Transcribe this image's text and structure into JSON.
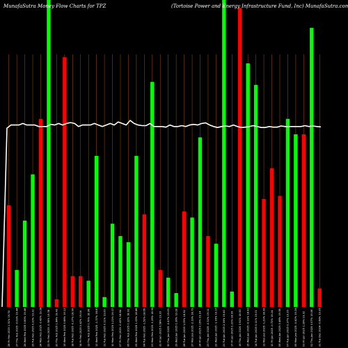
{
  "header": {
    "left_title": "MunafaSutra  Money  Flow  Charts for TPZ",
    "right_title": "(Tortoise   Power and Energy Infrastructure   Fund,  Inc) MunafaSutra.com"
  },
  "colors": {
    "background": "#000000",
    "up": "#00ff00",
    "down": "#ff0000",
    "line": "#ffffff",
    "grid": "#8b4500"
  },
  "chart_data": {
    "type": "bar",
    "ylim": [
      0,
      100
    ],
    "grid": "vertical",
    "bars": [
      {
        "label": "28 Fri Feb 2025 1.31% 19.74",
        "value": 33,
        "direction": "down"
      },
      {
        "label": "27 Thu Feb 2025 -0.09% 19.44",
        "value": 12,
        "direction": "up"
      },
      {
        "label": "26 Wed Feb 2025 0.83% 19.48",
        "value": 28,
        "direction": "up"
      },
      {
        "label": "25 Tue Feb 2025 0.20% 19.32",
        "value": 43,
        "direction": "up"
      },
      {
        "label": "24 Mon Feb 2025 -0.42% 19.28",
        "value": 61,
        "direction": "down"
      },
      {
        "label": "21 Fri Feb 2025 -0.36% 19.36",
        "value": 100,
        "direction": "up"
      },
      {
        "label": "20 Thu Feb 2025 1.64% 19.43",
        "value": 2.5,
        "direction": "down"
      },
      {
        "label": "19 Wed Feb 2025 0.66% 19.12",
        "value": 81,
        "direction": "down"
      },
      {
        "label": "18 Tue Feb 2025 -0.27% 18.99",
        "value": 10,
        "direction": "down"
      },
      {
        "label": "14 Fri Feb 2025 0.42% 19.04",
        "value": 10,
        "direction": "down"
      },
      {
        "label": "13 Thu Feb 2025 0.70% 18.96",
        "value": 8.5,
        "direction": "up"
      },
      {
        "label": "12 Wed Feb 2025 -1.37% 18.83",
        "value": 49,
        "direction": "up"
      },
      {
        "label": "11 Tue Feb 2025 0.11% 19.09",
        "value": 3.2,
        "direction": "up"
      },
      {
        "label": "10 Mon Feb 2025 1.21% 19.07",
        "value": 27,
        "direction": "up"
      },
      {
        "label": "07 Fri Feb 2025 -0.43% 18.84",
        "value": 23,
        "direction": "up"
      },
      {
        "label": "06 Thu Feb 2025 0.32% 18.92",
        "value": 21,
        "direction": "up"
      },
      {
        "label": "05 Wed Feb 2025 1.09% 18.86",
        "value": 49,
        "direction": "up"
      },
      {
        "label": "04 Tue Feb 2025 -1.52% 18.66",
        "value": 30,
        "direction": "down"
      },
      {
        "label": "03 Mon Feb 2025 -1.29% 18.95",
        "value": 73,
        "direction": "up"
      },
      {
        "label": "31 Fri Jan 2025 0.58% 19.20",
        "value": 12,
        "direction": "down"
      },
      {
        "label": "30 Thu Jan 2025 -0.47% 19.09",
        "value": 9.5,
        "direction": "up"
      },
      {
        "label": "29 Wed Jan 2025 1.36% 19.18",
        "value": 4.5,
        "direction": "up"
      },
      {
        "label": "28 Tue Jan 2025 1.05% 18.92",
        "value": 31,
        "direction": "down"
      },
      {
        "label": "27 Mon Jan 2025 -2.19% 18.72",
        "value": 29,
        "direction": "up"
      },
      {
        "label": "24 Fri Jan 2025 0.16% 19.14",
        "value": 55,
        "direction": "up"
      },
      {
        "label": "23 Thu Jan 2025 -0.32% 19.11",
        "value": 23,
        "direction": "down"
      },
      {
        "label": "22 Wed Jan 2025 -1.16% 19.17",
        "value": 20.5,
        "direction": "up"
      },
      {
        "label": "21 Tue Jan 2025 2.16% 19.40",
        "value": 100,
        "direction": "up"
      },
      {
        "label": "17 Fri Jan 2025 0.31% 18.99",
        "value": 5,
        "direction": "up"
      },
      {
        "label": "16 Thu Jan 2025 0.51% 18.93",
        "value": 97,
        "direction": "down"
      },
      {
        "label": "15 Wed Jan 2025 -0.93% 18.83",
        "value": 79,
        "direction": "up"
      },
      {
        "label": "14 Tue Jan 2025 0.11% 19.01",
        "value": 72,
        "direction": "up"
      },
      {
        "label": "13 Mon Jan 2025 -1.29% 18.99",
        "value": 35,
        "direction": "down"
      },
      {
        "label": "10 Fri Jan 2025 -0.72% 19.24",
        "value": 45,
        "direction": "down"
      },
      {
        "label": "08 Wed Jan 2025 0.48% 19.38",
        "value": 36,
        "direction": "down"
      },
      {
        "label": "07 Tue Jan 2025 0.27% 19.29",
        "value": 61,
        "direction": "up"
      },
      {
        "label": "06 Mon Jan 2025 -0.42% 19.24",
        "value": 56,
        "direction": "up"
      },
      {
        "label": "03 Fri Jan 2025 1.39% 19.32",
        "value": 56,
        "direction": "down"
      },
      {
        "label": "02 Thu Jan 2025 0.07% 19.06",
        "value": 90.5,
        "direction": "up"
      },
      {
        "label": "31 Tue Dec 2024 -0.68% 19.05",
        "value": 6,
        "direction": "down"
      }
    ],
    "line": [
      58,
      59,
      59,
      59,
      59.5,
      59,
      59,
      59,
      58.5,
      58.5,
      58.5,
      59.2,
      59,
      59.5,
      59,
      59.5,
      59.8,
      59.5,
      58.5,
      59,
      59,
      59,
      59.5,
      59,
      58.5,
      59,
      59.5,
      59,
      60,
      59.5,
      59,
      60.5,
      59.5,
      59,
      58.8,
      58.8,
      59.5,
      58.5,
      58.5,
      58.5,
      58.3,
      59,
      58.5,
      58.5,
      58.8,
      58.5,
      59,
      59.2,
      59,
      59.5,
      59.7,
      59,
      58.5,
      58.2,
      58.5,
      58.7,
      58.5,
      59,
      58.5,
      58.2,
      58.3,
      58.5,
      58.8,
      58.5,
      58.2,
      58.2,
      58.5,
      58.3,
      58.3,
      58.7,
      58.5,
      58.5,
      58.5,
      58.5,
      58.5,
      58.8,
      58.5,
      58.7,
      58.5,
      58.4
    ]
  }
}
